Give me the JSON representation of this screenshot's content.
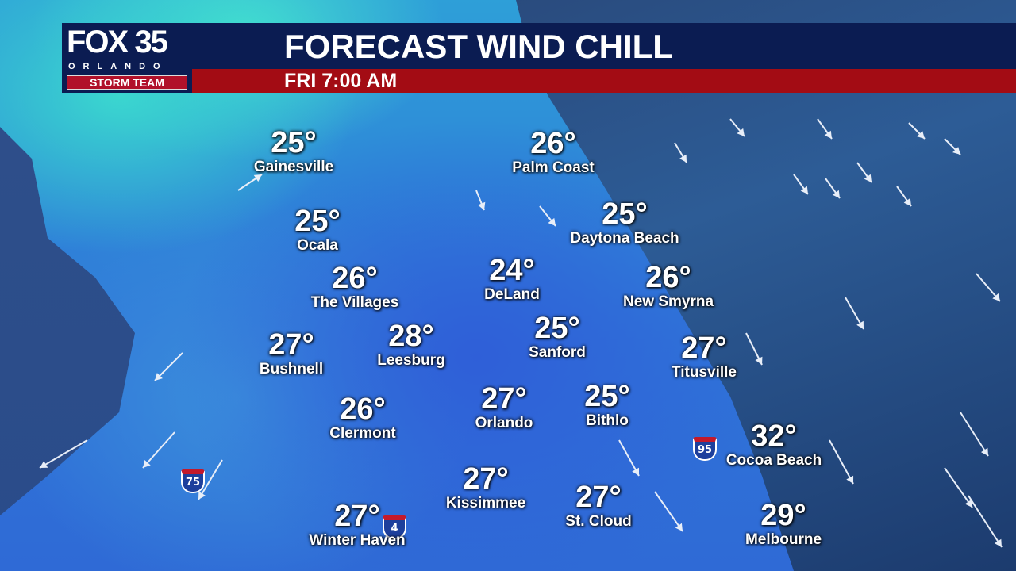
{
  "header": {
    "logo": {
      "station": "FOX 35",
      "city": "ORLANDO",
      "team": "STORM TEAM"
    },
    "title": "FORECAST WIND CHILL",
    "time": "FRI 7:00 AM"
  },
  "colors": {
    "title_bar": "#0b1c52",
    "subtitle_bar": "#a30c14",
    "land_cold": "#3ad6cf",
    "land": "#2f75d8",
    "ocean": "#2d5c96"
  },
  "cities": [
    {
      "name": "Gainesville",
      "temp": "25°"
    },
    {
      "name": "Ocala",
      "temp": "25°"
    },
    {
      "name": "The Villages",
      "temp": "26°"
    },
    {
      "name": "Bushnell",
      "temp": "27°"
    },
    {
      "name": "Leesburg",
      "temp": "28°"
    },
    {
      "name": "Clermont",
      "temp": "26°"
    },
    {
      "name": "Palm Coast",
      "temp": "26°"
    },
    {
      "name": "Daytona Beach",
      "temp": "25°"
    },
    {
      "name": "DeLand",
      "temp": "24°"
    },
    {
      "name": "New Smyrna",
      "temp": "26°"
    },
    {
      "name": "Sanford",
      "temp": "25°"
    },
    {
      "name": "Titusville",
      "temp": "27°"
    },
    {
      "name": "Orlando",
      "temp": "27°"
    },
    {
      "name": "Bithlo",
      "temp": "25°"
    },
    {
      "name": "Cocoa Beach",
      "temp": "32°"
    },
    {
      "name": "Kissimmee",
      "temp": "27°"
    },
    {
      "name": "St. Cloud",
      "temp": "27°"
    },
    {
      "name": "Winter Haven",
      "temp": "27°"
    },
    {
      "name": "Melbourne",
      "temp": "29°"
    }
  ],
  "highways": [
    "75",
    "4",
    "95"
  ],
  "wind_arrows": "wind-direction-arrows"
}
